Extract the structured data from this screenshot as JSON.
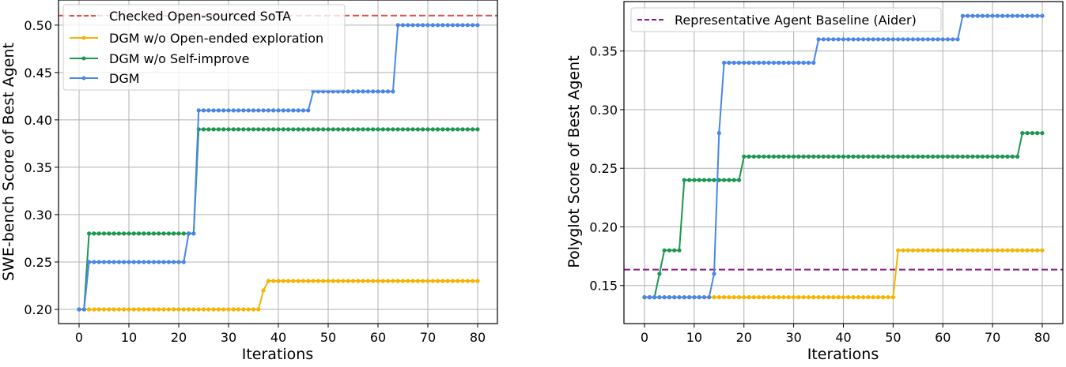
{
  "chart_data": [
    {
      "type": "line",
      "title": "",
      "xlabel": "Iterations",
      "ylabel": "SWE-bench Score of Best Agent",
      "xlim": [
        -4,
        84
      ],
      "ylim": [
        0.185,
        0.5265
      ],
      "xticks": [
        0,
        10,
        20,
        30,
        40,
        50,
        60,
        70,
        80
      ],
      "yticks": [
        0.2,
        0.25,
        0.3,
        0.35,
        0.4,
        0.45,
        0.5
      ],
      "ytick_labels": [
        "0.20",
        "0.25",
        "0.30",
        "0.35",
        "0.40",
        "0.45",
        "0.50"
      ],
      "grid": true,
      "legend_position": "upper left",
      "x": "0..80 step 1",
      "hlines": [
        {
          "name": "Checked Open-sourced SoTA",
          "y": 0.51,
          "color": "#d9534f",
          "style": "dashed"
        }
      ],
      "series": [
        {
          "name": "DGM w/o Open-ended exploration",
          "color": "#f4b400",
          "steps": [
            [
              0,
              0.2
            ],
            [
              37,
              0.22
            ],
            [
              38,
              0.23
            ]
          ]
        },
        {
          "name": "DGM w/o Self-improve",
          "color": "#1a9850",
          "steps": [
            [
              0,
              0.2
            ],
            [
              2,
              0.28
            ],
            [
              24,
              0.39
            ]
          ]
        },
        {
          "name": "DGM",
          "color": "#4a86e8",
          "steps": [
            [
              0,
              0.2
            ],
            [
              2,
              0.25
            ],
            [
              22,
              0.28
            ],
            [
              24,
              0.41
            ],
            [
              47,
              0.43
            ],
            [
              64,
              0.5
            ]
          ]
        }
      ]
    },
    {
      "type": "line",
      "title": "",
      "xlabel": "Iterations",
      "ylabel": "Polyglot Score of Best Agent",
      "xlim": [
        -4,
        84
      ],
      "ylim": [
        0.1175,
        0.3922
      ],
      "xticks": [
        0,
        10,
        20,
        30,
        40,
        50,
        60,
        70,
        80
      ],
      "yticks": [
        0.15,
        0.2,
        0.25,
        0.3,
        0.35
      ],
      "ytick_labels": [
        "0.15",
        "0.20",
        "0.25",
        "0.30",
        "0.35"
      ],
      "grid": true,
      "legend_position": "upper left",
      "x": "0..80 step 1",
      "hlines": [
        {
          "name": "Representative Agent Baseline (Aider)",
          "y": 0.1635,
          "color": "#8b1a8b",
          "style": "dashed"
        }
      ],
      "series": [
        {
          "name": "DGM w/o Open-ended exploration",
          "color": "#f4b400",
          "steps": [
            [
              0,
              0.14
            ],
            [
              51,
              0.18
            ]
          ]
        },
        {
          "name": "DGM w/o Self-improve",
          "color": "#1a9850",
          "steps": [
            [
              0,
              0.14
            ],
            [
              3,
              0.16
            ],
            [
              4,
              0.18
            ],
            [
              8,
              0.24
            ],
            [
              20,
              0.26
            ],
            [
              76,
              0.28
            ]
          ]
        },
        {
          "name": "DGM",
          "color": "#4a86e8",
          "steps": [
            [
              0,
              0.14
            ],
            [
              14,
              0.16
            ],
            [
              15,
              0.28
            ],
            [
              16,
              0.34
            ],
            [
              35,
              0.36
            ],
            [
              64,
              0.38
            ]
          ]
        }
      ]
    }
  ],
  "left_chart": {
    "xlabel": "Iterations",
    "ylabel": "SWE-bench Score of Best Agent",
    "legend": [
      "Checked Open-sourced SoTA",
      "DGM w/o Open-ended exploration",
      "DGM w/o Self-improve",
      "DGM"
    ]
  },
  "right_chart": {
    "xlabel": "Iterations",
    "ylabel": "Polyglot Score of Best Agent",
    "legend": [
      "Representative Agent Baseline (Aider)"
    ]
  }
}
